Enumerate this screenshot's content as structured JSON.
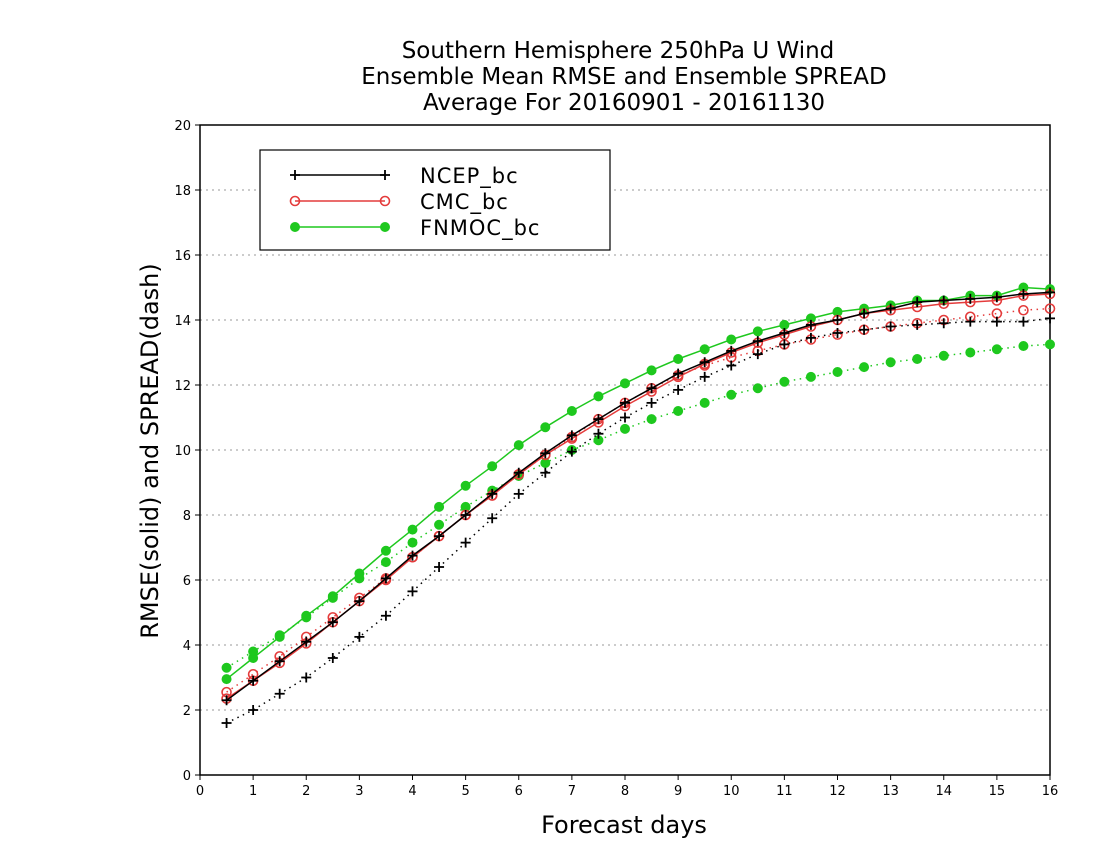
{
  "chart_data": {
    "type": "line",
    "title": [
      "Southern Hemisphere 250hPa U Wind",
      "Ensemble Mean RMSE and Ensemble SPREAD",
      "Average For 20160901 - 20161130"
    ],
    "xlabel": "Forecast days",
    "ylabel": "RMSE(solid) and SPREAD(dash)",
    "xlim": [
      0,
      16
    ],
    "ylim": [
      0,
      20
    ],
    "xticks": [
      0,
      1,
      2,
      3,
      4,
      5,
      6,
      7,
      8,
      9,
      10,
      11,
      12,
      13,
      14,
      15,
      16
    ],
    "yticks": [
      0,
      2,
      4,
      6,
      8,
      10,
      12,
      14,
      16,
      18,
      20
    ],
    "grid": "horizontal-dotted",
    "legend_position": "top-left",
    "x": [
      0.5,
      1,
      1.5,
      2,
      2.5,
      3,
      3.5,
      4,
      4.5,
      5,
      5.5,
      6,
      6.5,
      7,
      7.5,
      8,
      8.5,
      9,
      9.5,
      10,
      10.5,
      11,
      11.5,
      12,
      12.5,
      13,
      13.5,
      14,
      14.5,
      15,
      15.5,
      16
    ],
    "series": [
      {
        "name": "NCEP_bc",
        "color": "#000000",
        "marker": "plus",
        "style": "solid",
        "metric": "RMSE",
        "values": [
          2.3,
          2.9,
          3.5,
          4.1,
          4.7,
          5.35,
          6.05,
          6.75,
          7.35,
          8.0,
          8.65,
          9.3,
          9.9,
          10.45,
          10.95,
          11.45,
          11.9,
          12.35,
          12.7,
          13.05,
          13.35,
          13.6,
          13.85,
          14.0,
          14.2,
          14.35,
          14.55,
          14.6,
          14.65,
          14.7,
          14.8,
          14.85
        ]
      },
      {
        "name": "NCEP_bc",
        "color": "#000000",
        "marker": "plus",
        "style": "dash",
        "metric": "SPREAD",
        "values": [
          1.6,
          2.0,
          2.5,
          3.0,
          3.6,
          4.25,
          4.9,
          5.65,
          6.4,
          7.15,
          7.9,
          8.65,
          9.3,
          9.95,
          10.5,
          11.0,
          11.45,
          11.85,
          12.25,
          12.6,
          12.95,
          13.25,
          13.45,
          13.6,
          13.7,
          13.8,
          13.85,
          13.9,
          13.95,
          13.95,
          13.95,
          14.05
        ]
      },
      {
        "name": "CMC_bc",
        "color": "#e43b3b",
        "marker": "open-circle",
        "style": "solid",
        "metric": "RMSE",
        "values": [
          2.35,
          2.9,
          3.45,
          4.05,
          4.7,
          5.35,
          6.0,
          6.7,
          7.35,
          8.0,
          8.6,
          9.25,
          9.85,
          10.35,
          10.85,
          11.35,
          11.8,
          12.25,
          12.65,
          13.0,
          13.3,
          13.55,
          13.8,
          14.0,
          14.2,
          14.3,
          14.4,
          14.5,
          14.55,
          14.6,
          14.75,
          14.8
        ]
      },
      {
        "name": "CMC_bc",
        "color": "#e43b3b",
        "marker": "open-circle",
        "style": "dash",
        "metric": "SPREAD",
        "values": [
          2.55,
          3.1,
          3.65,
          4.25,
          4.85,
          5.45,
          6.05,
          6.7,
          7.35,
          8.0,
          8.6,
          9.25,
          9.85,
          10.4,
          10.95,
          11.45,
          11.9,
          12.3,
          12.6,
          12.85,
          13.05,
          13.25,
          13.4,
          13.55,
          13.7,
          13.8,
          13.9,
          14.0,
          14.1,
          14.2,
          14.3,
          14.35
        ]
      },
      {
        "name": "FNMOC_bc",
        "color": "#1ec81e",
        "marker": "filled-circle",
        "style": "solid",
        "metric": "RMSE",
        "values": [
          2.95,
          3.6,
          4.25,
          4.9,
          5.5,
          6.2,
          6.9,
          7.55,
          8.25,
          8.9,
          9.5,
          10.15,
          10.7,
          11.2,
          11.65,
          12.05,
          12.45,
          12.8,
          13.1,
          13.4,
          13.65,
          13.85,
          14.05,
          14.25,
          14.35,
          14.45,
          14.6,
          14.6,
          14.75,
          14.75,
          15.0,
          14.95
        ]
      },
      {
        "name": "FNMOC_bc",
        "color": "#1ec81e",
        "marker": "filled-circle",
        "style": "dash",
        "metric": "SPREAD",
        "values": [
          3.3,
          3.8,
          4.3,
          4.85,
          5.45,
          6.05,
          6.55,
          7.15,
          7.7,
          8.25,
          8.75,
          9.2,
          9.6,
          10.0,
          10.3,
          10.65,
          10.95,
          11.2,
          11.45,
          11.7,
          11.9,
          12.1,
          12.25,
          12.4,
          12.55,
          12.7,
          12.8,
          12.9,
          13.0,
          13.1,
          13.2,
          13.25
        ]
      }
    ],
    "legend": [
      {
        "label": "NCEP_bc",
        "color": "#000000",
        "marker": "plus"
      },
      {
        "label": "CMC_bc",
        "color": "#e43b3b",
        "marker": "open-circle"
      },
      {
        "label": "FNMOC_bc",
        "color": "#1ec81e",
        "marker": "filled-circle"
      }
    ]
  }
}
